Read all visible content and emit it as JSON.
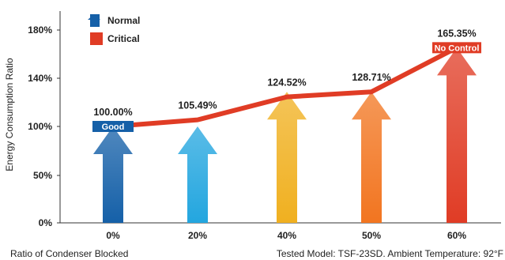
{
  "chart_data": {
    "type": "bar",
    "categories": [
      "0%",
      "20%",
      "40%",
      "50%",
      "60%"
    ],
    "values": [
      100.0,
      105.49,
      124.52,
      128.71,
      165.35
    ],
    "data_labels": [
      "100.00%",
      "105.49%",
      "124.52%",
      "128.71%",
      "165.35%"
    ],
    "arrow_levels": [
      100.0,
      100.0,
      128.71,
      128.71,
      165.35
    ],
    "line_values": [
      100.0,
      105.49,
      124.52,
      128.71,
      165.35
    ],
    "arrow_colors": [
      "#1560a8",
      "#23a6df",
      "#f0b020",
      "#f27520",
      "#e03c25"
    ],
    "yticks": [
      {
        "value": 0,
        "label": "0%"
      },
      {
        "value": 50,
        "label": "50%"
      },
      {
        "value": 100,
        "label": "100%"
      },
      {
        "value": 140,
        "label": "140%"
      },
      {
        "value": 180,
        "label": "180%"
      }
    ],
    "ylim": [
      0,
      180
    ],
    "ylabel": "Energy Consumption Ratio",
    "xlabel": "Ratio of Condenser Blocked",
    "note": "Tested Model: TSF-23SD. Ambient Temperature: 92°F",
    "legend": {
      "placement": "top-left",
      "items": [
        {
          "label": "Normal",
          "color": "#1560a8"
        },
        {
          "label": "Critical",
          "color": "#e03c25"
        }
      ]
    },
    "badges": [
      {
        "index": 0,
        "text": "Good",
        "color": "#1560a8"
      },
      {
        "index": 4,
        "text": "No Control",
        "color": "#e03c25"
      }
    ],
    "line_color": "#e03c25",
    "grid": false
  }
}
